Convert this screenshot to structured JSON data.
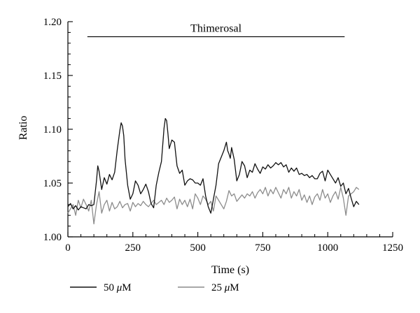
{
  "chart_data": {
    "type": "line",
    "title": "",
    "xlabel": "Time (s)",
    "ylabel": "Ratio",
    "xlim": [
      0,
      1250
    ],
    "ylim": [
      1.0,
      1.2
    ],
    "xticks": [
      0,
      250,
      500,
      750,
      1000,
      1250
    ],
    "xtick_labels": [
      "0",
      "250",
      "500",
      "750",
      "1000",
      "1250"
    ],
    "yticks": [
      1.0,
      1.05,
      1.1,
      1.15,
      1.2
    ],
    "ytick_labels": [
      "1.00",
      "1.05",
      "1.10",
      "1.15",
      "1.20"
    ],
    "grid": false,
    "legend_placement": "bottom",
    "annotation": {
      "text": "Thimerosal",
      "x_start": 75,
      "x_end": 1065,
      "y": 1.186
    },
    "series": [
      {
        "name": "50 μM",
        "legend_prefix": "50",
        "legend_unit": "μ",
        "legend_suffix": "M",
        "color": "#111111",
        "x": [
          0,
          10,
          20,
          30,
          40,
          50,
          60,
          70,
          80,
          90,
          100,
          110,
          115,
          120,
          130,
          140,
          150,
          160,
          170,
          180,
          190,
          200,
          205,
          210,
          215,
          220,
          230,
          240,
          250,
          260,
          270,
          280,
          290,
          300,
          310,
          320,
          330,
          340,
          350,
          360,
          370,
          375,
          380,
          385,
          390,
          400,
          410,
          420,
          430,
          440,
          450,
          460,
          470,
          480,
          490,
          500,
          510,
          520,
          530,
          540,
          550,
          560,
          570,
          580,
          590,
          600,
          610,
          615,
          620,
          625,
          630,
          640,
          650,
          660,
          670,
          680,
          690,
          700,
          710,
          720,
          730,
          740,
          750,
          760,
          770,
          780,
          790,
          800,
          810,
          820,
          830,
          840,
          850,
          860,
          870,
          880,
          890,
          900,
          910,
          920,
          930,
          940,
          950,
          960,
          970,
          980,
          990,
          1000,
          1010,
          1020,
          1030,
          1040,
          1050,
          1060,
          1070,
          1080,
          1090,
          1100,
          1110,
          1120
        ],
        "values": [
          1.028,
          1.031,
          1.026,
          1.029,
          1.025,
          1.028,
          1.027,
          1.026,
          1.03,
          1.029,
          1.03,
          1.052,
          1.066,
          1.061,
          1.044,
          1.055,
          1.049,
          1.058,
          1.053,
          1.06,
          1.081,
          1.099,
          1.106,
          1.103,
          1.094,
          1.072,
          1.048,
          1.035,
          1.04,
          1.052,
          1.048,
          1.04,
          1.044,
          1.049,
          1.042,
          1.031,
          1.027,
          1.048,
          1.06,
          1.07,
          1.101,
          1.11,
          1.108,
          1.096,
          1.082,
          1.09,
          1.088,
          1.066,
          1.059,
          1.062,
          1.048,
          1.052,
          1.054,
          1.053,
          1.05,
          1.05,
          1.048,
          1.054,
          1.038,
          1.028,
          1.022,
          1.035,
          1.048,
          1.068,
          1.074,
          1.08,
          1.088,
          1.08,
          1.077,
          1.073,
          1.083,
          1.072,
          1.052,
          1.058,
          1.07,
          1.066,
          1.055,
          1.062,
          1.06,
          1.068,
          1.063,
          1.059,
          1.065,
          1.063,
          1.067,
          1.064,
          1.066,
          1.069,
          1.067,
          1.069,
          1.065,
          1.067,
          1.06,
          1.064,
          1.061,
          1.064,
          1.058,
          1.059,
          1.057,
          1.058,
          1.055,
          1.057,
          1.054,
          1.054,
          1.059,
          1.061,
          1.052,
          1.062,
          1.058,
          1.054,
          1.05,
          1.055,
          1.047,
          1.05,
          1.04,
          1.045,
          1.036,
          1.028,
          1.033,
          1.03
        ]
      },
      {
        "name": "25 μM",
        "legend_prefix": "25",
        "legend_unit": "μ",
        "legend_suffix": "M",
        "color": "#8c8c8c",
        "x": [
          0,
          10,
          20,
          30,
          40,
          50,
          60,
          70,
          80,
          90,
          100,
          110,
          120,
          130,
          140,
          150,
          160,
          170,
          180,
          190,
          200,
          210,
          220,
          230,
          240,
          250,
          260,
          270,
          280,
          290,
          300,
          310,
          320,
          330,
          340,
          350,
          360,
          370,
          380,
          390,
          400,
          410,
          420,
          430,
          440,
          450,
          460,
          470,
          480,
          490,
          500,
          510,
          520,
          530,
          540,
          550,
          560,
          570,
          580,
          590,
          600,
          610,
          620,
          630,
          640,
          650,
          660,
          670,
          680,
          690,
          700,
          710,
          720,
          730,
          740,
          750,
          760,
          770,
          780,
          790,
          800,
          810,
          820,
          830,
          840,
          850,
          860,
          870,
          880,
          890,
          900,
          910,
          920,
          930,
          940,
          950,
          960,
          970,
          980,
          990,
          1000,
          1010,
          1020,
          1030,
          1040,
          1050,
          1060,
          1070,
          1080,
          1090,
          1100,
          1110,
          1120
        ],
        "values": [
          1.022,
          1.026,
          1.03,
          1.02,
          1.034,
          1.027,
          1.035,
          1.03,
          1.024,
          1.034,
          1.012,
          1.03,
          1.042,
          1.022,
          1.03,
          1.034,
          1.024,
          1.032,
          1.026,
          1.028,
          1.033,
          1.027,
          1.03,
          1.031,
          1.024,
          1.032,
          1.028,
          1.031,
          1.029,
          1.033,
          1.03,
          1.028,
          1.031,
          1.034,
          1.03,
          1.032,
          1.034,
          1.03,
          1.036,
          1.032,
          1.034,
          1.037,
          1.026,
          1.035,
          1.03,
          1.034,
          1.028,
          1.035,
          1.026,
          1.04,
          1.036,
          1.03,
          1.038,
          1.035,
          1.03,
          1.033,
          1.024,
          1.038,
          1.034,
          1.03,
          1.026,
          1.033,
          1.043,
          1.038,
          1.04,
          1.033,
          1.036,
          1.039,
          1.036,
          1.04,
          1.038,
          1.042,
          1.036,
          1.041,
          1.044,
          1.04,
          1.046,
          1.038,
          1.044,
          1.04,
          1.046,
          1.041,
          1.036,
          1.044,
          1.04,
          1.046,
          1.036,
          1.042,
          1.038,
          1.044,
          1.034,
          1.039,
          1.032,
          1.038,
          1.03,
          1.037,
          1.04,
          1.034,
          1.044,
          1.036,
          1.04,
          1.032,
          1.038,
          1.042,
          1.035,
          1.046,
          1.036,
          1.02,
          1.038,
          1.04,
          1.042,
          1.046,
          1.044
        ]
      }
    ]
  }
}
